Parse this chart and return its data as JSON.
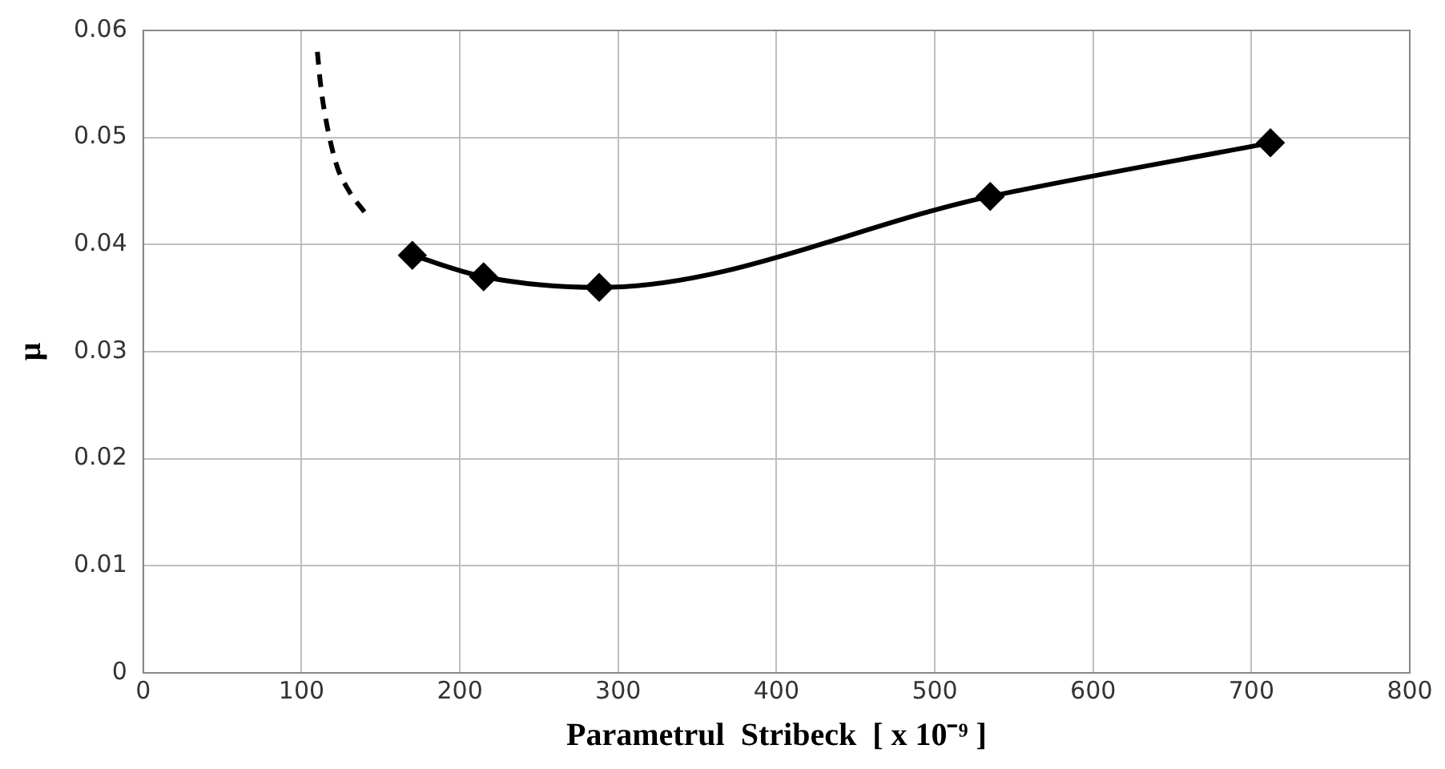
{
  "chart_data": {
    "type": "line",
    "xlabel": "Parametrul  Stribeck  [ x 10⁻⁹ ]",
    "ylabel": "μ",
    "xlim": [
      0,
      800
    ],
    "xticks": [
      0,
      100,
      200,
      300,
      400,
      500,
      600,
      700,
      800
    ],
    "ylim": [
      0,
      0.06
    ],
    "yticks": [
      0,
      0.01,
      0.02,
      0.03,
      0.04,
      0.05,
      0.06
    ],
    "grid": true,
    "legend": false,
    "series": [
      {
        "color": "#000000",
        "x": [
          110,
          112,
          115,
          122,
          130,
          140
        ],
        "values": [
          0.058,
          0.055,
          0.052,
          0.0475,
          0.045,
          0.043
        ],
        "marker": "none",
        "line_style": "dashed"
      },
      {
        "color": "#000000",
        "x": [
          170,
          215,
          288,
          535,
          712
        ],
        "values": [
          0.039,
          0.037,
          0.036,
          0.0445,
          0.0495
        ],
        "marker": "diamond",
        "line_style": "solid"
      }
    ]
  }
}
